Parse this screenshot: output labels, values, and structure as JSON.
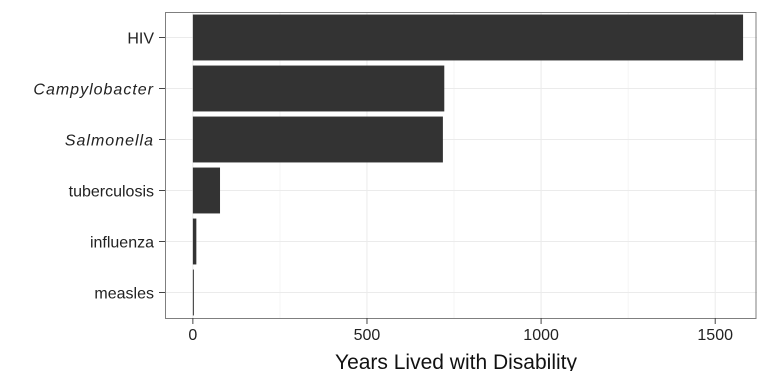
{
  "chart_data": {
    "type": "bar",
    "orientation": "horizontal",
    "categories": [
      "HIV",
      "Campylobacter",
      "Salmonella",
      "tuberculosis",
      "influenza",
      "measles"
    ],
    "italic_categories": [
      "Campylobacter",
      "Salmonella"
    ],
    "values": [
      1580,
      722,
      718,
      78,
      10,
      2
    ],
    "title": "",
    "xlabel": "Years Lived with Disability",
    "ylabel": "",
    "xlim": [
      -80,
      1620
    ],
    "xticks": [
      0,
      500,
      1000,
      1500
    ],
    "xtick_labels": [
      "0",
      "500",
      "1000",
      "1500"
    ],
    "grid": true,
    "colors": {
      "bar": "#333333",
      "panel_border": "#7f7f7f",
      "grid_major": "#ebebeb",
      "grid_minor": "#f5f5f5"
    }
  }
}
